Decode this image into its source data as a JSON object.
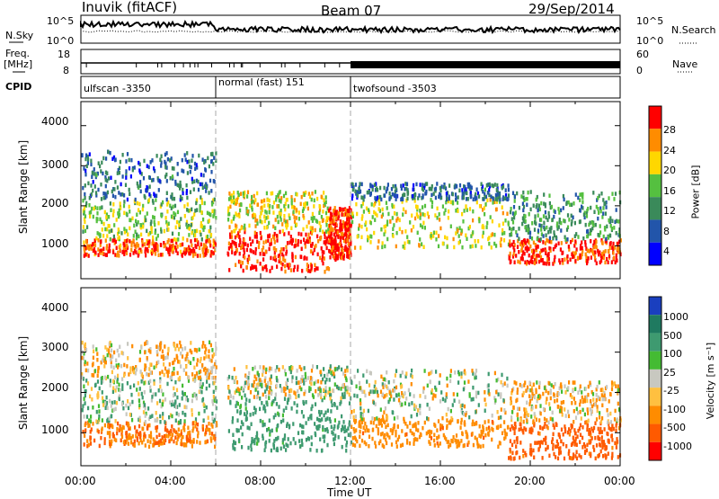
{
  "header": {
    "left_title": "Inuvik (fitACF)",
    "center_title": "Beam 07",
    "right_title": "29/Sep/2014"
  },
  "noise_panel": {
    "left_label": "N.Sky",
    "right_label": "N.Search",
    "left_ticks": [
      "10^5",
      "10^0"
    ],
    "right_ticks": [
      "10^5",
      "10^0"
    ]
  },
  "freq_panel": {
    "left_label_line1": "Freq.",
    "left_label_line2": "[MHz]",
    "left_ticks": [
      "18",
      "8"
    ],
    "right_label": "Nave",
    "right_ticks": [
      "60",
      "0"
    ]
  },
  "cpid": {
    "label": "CPID",
    "segments": [
      {
        "name": "ulfscan -3350",
        "start_hour": 0,
        "end_hour": 6
      },
      {
        "name": "normal (fast) 151",
        "start_hour": 6,
        "end_hour": 12
      },
      {
        "name": "twofsound -3503",
        "start_hour": 12,
        "end_hour": 24
      }
    ]
  },
  "power_panel": {
    "ylabel": "Slant Range [km]",
    "yticks": [
      "4000",
      "3000",
      "2000",
      "1000"
    ],
    "colorbar_label": "Power [dB]",
    "colorbar_ticks": [
      "28",
      "24",
      "20",
      "16",
      "12",
      "8",
      "4"
    ],
    "colors": [
      "#0000ff",
      "#2255aa",
      "#3a8a5a",
      "#55c040",
      "#ffd700",
      "#ff8c00",
      "#ff0000"
    ]
  },
  "velocity_panel": {
    "ylabel": "Slant Range [km]",
    "yticks": [
      "4000",
      "3000",
      "2000",
      "1000"
    ],
    "colorbar_label": "Velocity [m s⁻¹]",
    "colorbar_ticks": [
      "1000",
      "500",
      "100",
      "25",
      "-25",
      "-100",
      "-500",
      "-1000"
    ],
    "colors": [
      "#1a3fbf",
      "#1f7a60",
      "#3e9a70",
      "#44bb33",
      "#c8c8c0",
      "#ffc040",
      "#ff8c00",
      "#ff5a00",
      "#ff0000"
    ]
  },
  "xaxis": {
    "label": "Time UT",
    "ticks": [
      "00:00",
      "04:00",
      "08:00",
      "12:00",
      "16:00",
      "20:00",
      "00:00"
    ]
  },
  "chart_data": {
    "type": "heatmap",
    "title": "Inuvik (fitACF)",
    "subtitle": "Beam 07 29/Sep/2014",
    "xlabel": "Time UT",
    "ylabel": "Slant Range [km]",
    "x_range_hours": [
      0,
      24
    ],
    "y_range_km": [
      180,
      4600
    ],
    "panels": [
      {
        "name": "Power",
        "unit": "dB",
        "color_scale": [
          0,
          30
        ],
        "scatter_regions": [
          {
            "t_start": 0.0,
            "t_end": 6.0,
            "r_min": 800,
            "r_max": 1200,
            "value": 26
          },
          {
            "t_start": 0.0,
            "t_end": 6.0,
            "r_min": 1200,
            "r_max": 2200,
            "value": 16
          },
          {
            "t_start": 0.0,
            "t_end": 6.0,
            "r_min": 2200,
            "r_max": 3400,
            "value": 8
          },
          {
            "t_start": 6.5,
            "t_end": 11.0,
            "r_min": 400,
            "r_max": 1400,
            "value": 28
          },
          {
            "t_start": 6.5,
            "t_end": 11.0,
            "r_min": 1400,
            "r_max": 2400,
            "value": 18
          },
          {
            "t_start": 11.0,
            "t_end": 12.0,
            "r_min": 700,
            "r_max": 2000,
            "value": 28
          },
          {
            "t_start": 12.0,
            "t_end": 19.0,
            "r_min": 1000,
            "r_max": 2200,
            "value": 18
          },
          {
            "t_start": 12.0,
            "t_end": 19.0,
            "r_min": 2200,
            "r_max": 2600,
            "value": 8
          },
          {
            "t_start": 19.0,
            "t_end": 24.0,
            "r_min": 600,
            "r_max": 1200,
            "value": 27
          },
          {
            "t_start": 19.0,
            "t_end": 24.0,
            "r_min": 1200,
            "r_max": 2400,
            "value": 12
          }
        ]
      },
      {
        "name": "Velocity",
        "unit": "m s-1",
        "color_scale": [
          -1000,
          1000
        ],
        "scatter_regions": [
          {
            "t_start": 0.0,
            "t_end": 6.0,
            "r_min": 700,
            "r_max": 1300,
            "value": -300
          },
          {
            "t_start": 0.0,
            "t_end": 6.0,
            "r_min": 1300,
            "r_max": 2400,
            "value": 50
          },
          {
            "t_start": 0.0,
            "t_end": 6.0,
            "r_min": 2400,
            "r_max": 3300,
            "value": -60
          },
          {
            "t_start": 6.5,
            "t_end": 12.0,
            "r_min": 600,
            "r_max": 1900,
            "value": 150
          },
          {
            "t_start": 6.5,
            "t_end": 12.0,
            "r_min": 1900,
            "r_max": 2700,
            "value": 0
          },
          {
            "t_start": 12.0,
            "t_end": 19.0,
            "r_min": 700,
            "r_max": 1400,
            "value": -200
          },
          {
            "t_start": 12.0,
            "t_end": 19.0,
            "r_min": 1400,
            "r_max": 2600,
            "value": 0
          },
          {
            "t_start": 19.0,
            "t_end": 24.0,
            "r_min": 400,
            "r_max": 1300,
            "value": -400
          },
          {
            "t_start": 19.0,
            "t_end": 24.0,
            "r_min": 1300,
            "r_max": 2300,
            "value": -60
          }
        ]
      }
    ]
  }
}
